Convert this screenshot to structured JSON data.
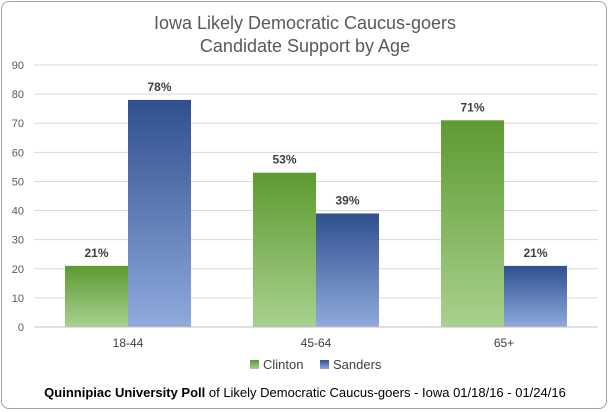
{
  "chart_data": {
    "type": "bar",
    "title": "Iowa Likely Democratic Caucus-goers",
    "subtitle": "Candidate Support by Age",
    "categories": [
      "18-44",
      "45-64",
      "65+"
    ],
    "series": [
      {
        "name": "Clinton",
        "values": [
          21,
          53,
          71
        ],
        "labels": [
          "21%",
          "53%",
          "71%"
        ],
        "color_top": "#5d9a31",
        "color_bottom": "#a9d18e"
      },
      {
        "name": "Sanders",
        "values": [
          78,
          39,
          21
        ],
        "labels": [
          "78%",
          "39%",
          "21%"
        ],
        "color_top": "#2f4f8f",
        "color_bottom": "#8faadc"
      }
    ],
    "yticks": [
      0,
      10,
      20,
      30,
      40,
      50,
      60,
      70,
      80,
      90
    ],
    "ylim": [
      0,
      90
    ],
    "grid": true,
    "legend": "bottom-center"
  },
  "footnote": {
    "bold": "Quinnipiac University Poll",
    "rest": " of Likely Democratic Caucus-goers - Iowa 01/18/16 - 01/24/16"
  }
}
